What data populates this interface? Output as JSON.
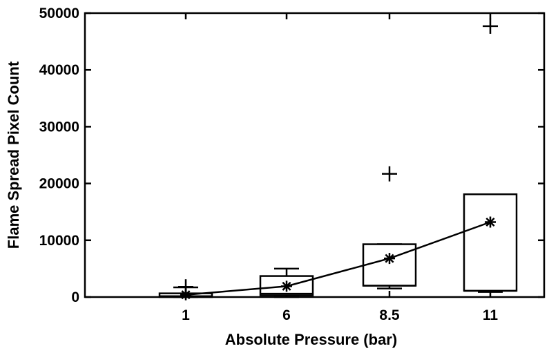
{
  "chart_data": {
    "type": "box",
    "categories": [
      "1",
      "6",
      "8.5",
      "11"
    ],
    "xlabel": "Absolute Pressure (bar)",
    "ylabel": "Flame Spread Pixel Count",
    "ylim": [
      0,
      50000
    ],
    "yticks": [
      0,
      10000,
      20000,
      30000,
      40000,
      50000
    ],
    "grid": false,
    "boxes": [
      {
        "category": "1",
        "whisker_low": 0,
        "q1": 0,
        "median": 150,
        "q3": 650,
        "whisker_high": 1700,
        "mean": 400,
        "outliers": [
          1800
        ]
      },
      {
        "category": "6",
        "whisker_low": 0,
        "q1": 300,
        "median": 600,
        "q3": 3700,
        "whisker_high": 5000,
        "mean": 1900,
        "outliers": []
      },
      {
        "category": "8.5",
        "whisker_low": 1500,
        "q1": 2000,
        "median": 2000,
        "q3": 9300,
        "whisker_high": 9300,
        "mean": 6800,
        "outliers": [
          21700
        ]
      },
      {
        "category": "11",
        "whisker_low": 900,
        "q1": 1100,
        "median": 1100,
        "q3": 18100,
        "whisker_high": 18100,
        "mean": 13200,
        "outliers": [
          47700
        ]
      }
    ],
    "mean_line": {
      "marker": "asterisk",
      "values": [
        400,
        1900,
        6800,
        13200
      ]
    }
  }
}
